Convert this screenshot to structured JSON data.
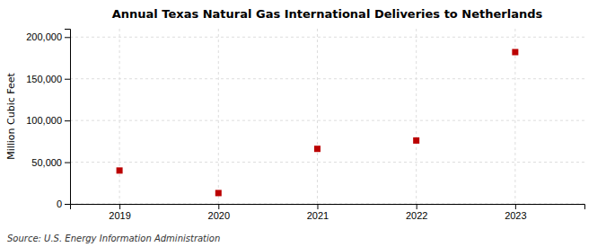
{
  "chart_data": {
    "type": "scatter",
    "title": "Annual Texas Natural Gas International Deliveries to Netherlands",
    "ylabel": "Million Cubic Feet",
    "source": "Source: U.S. Energy Information Administration",
    "x": [
      2019,
      2020,
      2021,
      2022,
      2023
    ],
    "values": [
      40000,
      13000,
      66000,
      76000,
      182000
    ],
    "xlim": [
      2018.5,
      2023.7
    ],
    "xticks": [
      2019,
      2020,
      2021,
      2022,
      2023
    ],
    "ylim": [
      0,
      210000
    ],
    "yticks": [
      0,
      {
        "value": 50000,
        "label": "50,000"
      },
      {
        "value": 100000,
        "label": "100,000"
      },
      {
        "value": 150000,
        "label": "150,000"
      },
      {
        "value": 200000,
        "label": "200,000"
      }
    ],
    "color": "#bb0000",
    "marker": "square",
    "grid": true
  }
}
